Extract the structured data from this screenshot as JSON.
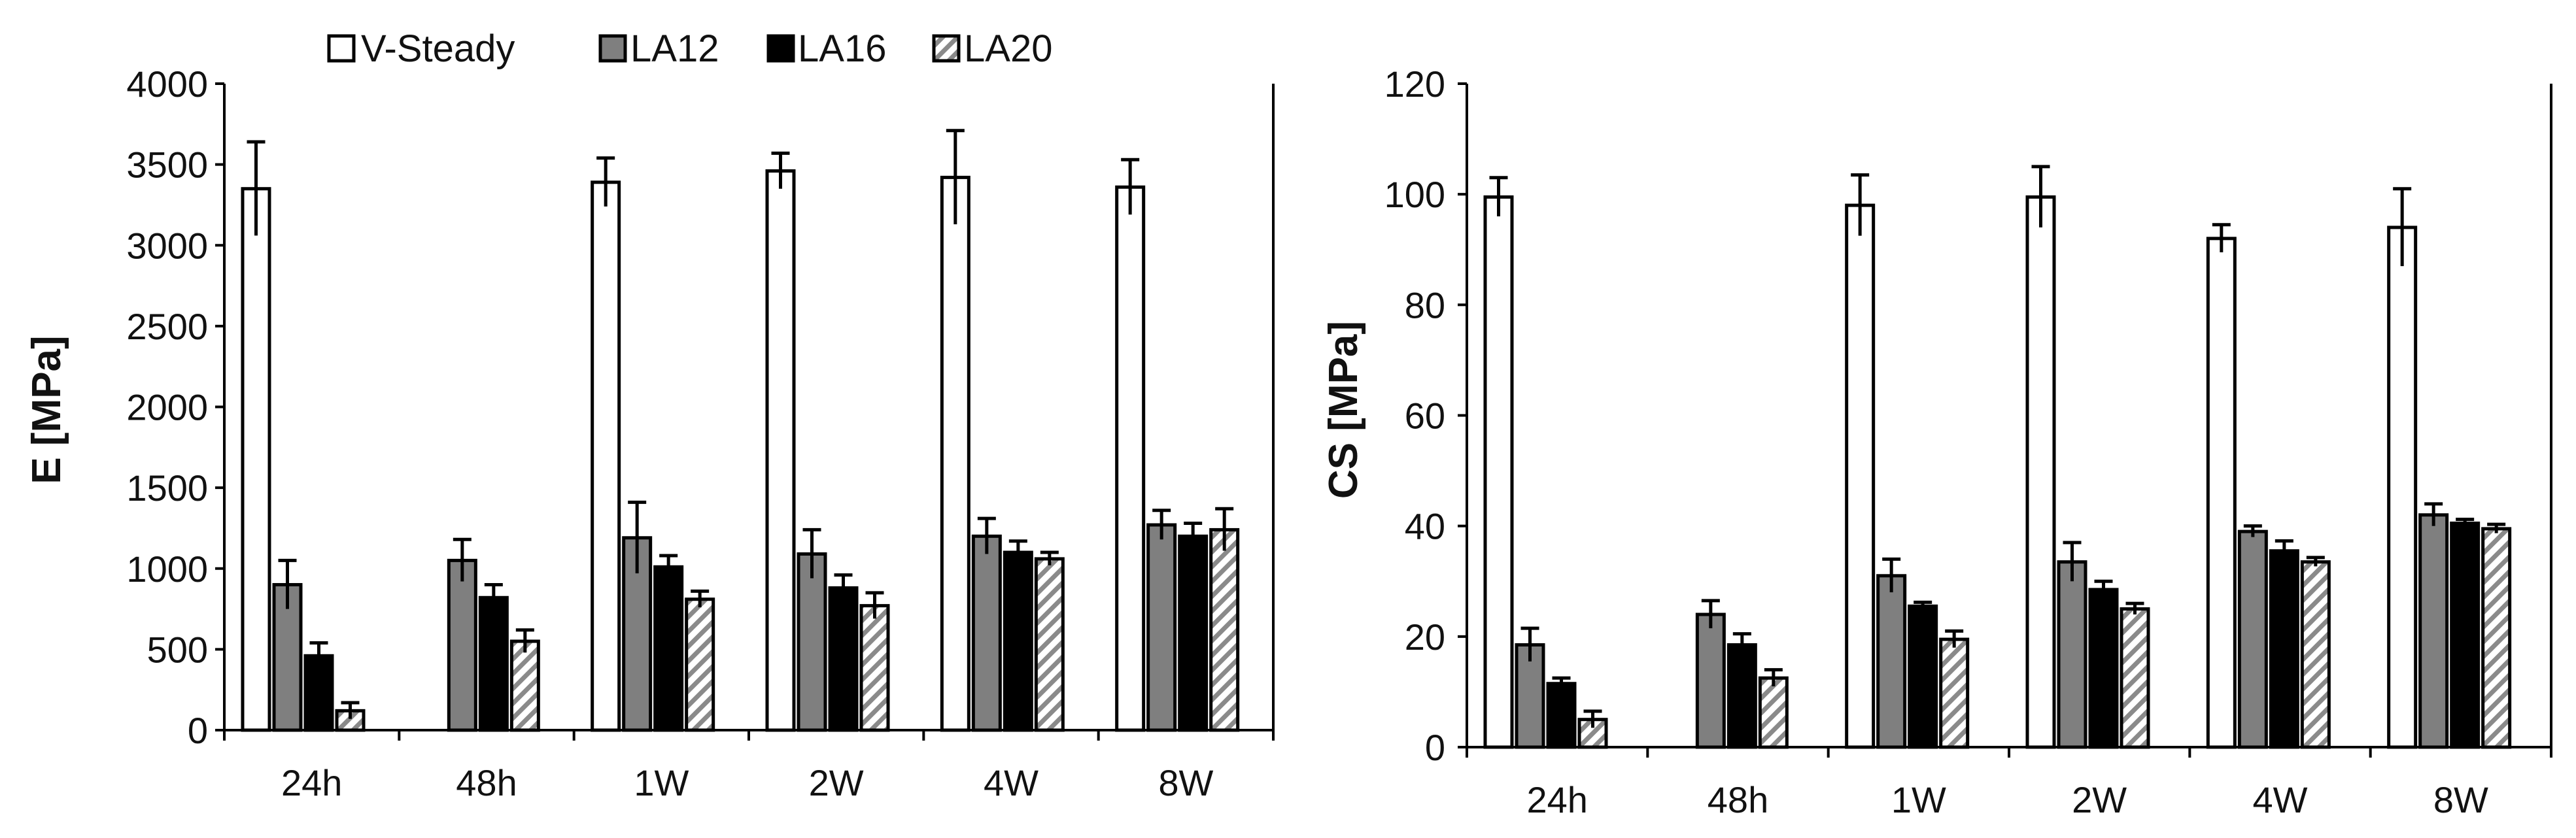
{
  "colors": {
    "v_steady": "#ffffff",
    "la12": "#7f7f7f",
    "la16": "#000000",
    "la20_stripe": "#808080",
    "outline": "#000000"
  },
  "legend": {
    "items": [
      {
        "label": "V-Steady",
        "swatch": "white"
      },
      {
        "label": "LA12",
        "swatch": "gray"
      },
      {
        "label": "LA16",
        "swatch": "black"
      },
      {
        "label": "LA20",
        "swatch": "hatched"
      }
    ]
  },
  "chart_data": [
    {
      "type": "bar",
      "title": "",
      "xlabel": "",
      "ylabel": "E [MPa]",
      "ylim": [
        0,
        4000
      ],
      "yticks": [
        "0",
        "500",
        "1000",
        "1500",
        "2000",
        "2500",
        "3000",
        "3500",
        "4000"
      ],
      "ytick_values": [
        0,
        500,
        1000,
        1500,
        2000,
        2500,
        3000,
        3500,
        4000
      ],
      "categories": [
        "24h",
        "48h",
        "1W",
        "2W",
        "4W",
        "8W"
      ],
      "grid": false,
      "legend_position": "top",
      "series": [
        {
          "name": "V-Steady",
          "values": [
            3350,
            0,
            3390,
            3460,
            3420,
            3360
          ],
          "errors": [
            290,
            0,
            150,
            110,
            290,
            170
          ]
        },
        {
          "name": "LA12",
          "values": [
            900,
            1050,
            1190,
            1090,
            1200,
            1270
          ],
          "errors": [
            150,
            130,
            220,
            150,
            110,
            90
          ]
        },
        {
          "name": "LA16",
          "values": [
            460,
            820,
            1010,
            880,
            1100,
            1200
          ],
          "errors": [
            80,
            80,
            70,
            80,
            70,
            80
          ]
        },
        {
          "name": "LA20",
          "values": [
            120,
            550,
            810,
            770,
            1060,
            1240
          ],
          "errors": [
            50,
            70,
            50,
            80,
            40,
            130
          ]
        }
      ]
    },
    {
      "type": "bar",
      "title": "",
      "xlabel": "",
      "ylabel": "CS [MPa]",
      "ylim": [
        0,
        120
      ],
      "yticks": [
        "0",
        "20",
        "40",
        "60",
        "80",
        "100",
        "120"
      ],
      "ytick_values": [
        0,
        20,
        40,
        60,
        80,
        100,
        120
      ],
      "categories": [
        "24h",
        "48h",
        "1W",
        "2W",
        "4W",
        "8W"
      ],
      "grid": false,
      "legend_position": "none",
      "series": [
        {
          "name": "V-Steady",
          "values": [
            99.5,
            0,
            98,
            99.5,
            92,
            94
          ],
          "errors": [
            3.5,
            0,
            5.5,
            5.5,
            2.5,
            7
          ]
        },
        {
          "name": "LA12",
          "values": [
            18.5,
            24,
            31,
            33.5,
            39,
            42
          ],
          "errors": [
            3,
            2.5,
            3,
            3.5,
            1,
            2
          ]
        },
        {
          "name": "LA16",
          "values": [
            11.5,
            18.5,
            25.5,
            28.5,
            35.5,
            40.5
          ],
          "errors": [
            1,
            2,
            0.7,
            1.5,
            1.8,
            0.7
          ]
        },
        {
          "name": "LA20",
          "values": [
            5,
            12.5,
            19.5,
            25,
            33.5,
            39.5
          ],
          "errors": [
            1.5,
            1.5,
            1.5,
            1,
            0.8,
            0.8
          ]
        }
      ]
    }
  ]
}
